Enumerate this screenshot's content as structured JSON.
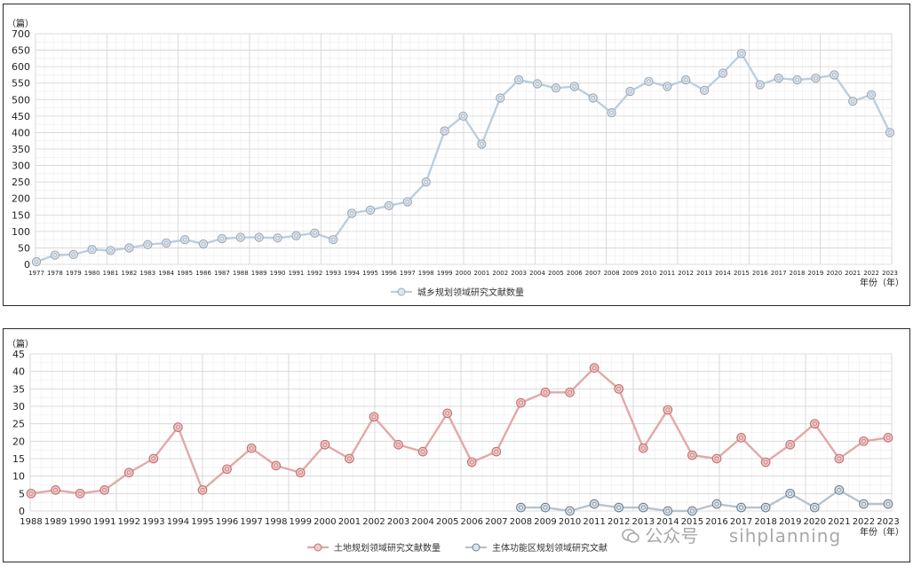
{
  "watermark": {
    "account": "公众号",
    "handle": "sihplanning",
    "icon": "wechat-icon"
  },
  "chart_data": [
    {
      "type": "line",
      "title": "",
      "ylabel": "（篇）",
      "xlabel": "年份（年）",
      "ylim": [
        0,
        700
      ],
      "yticks": [
        0,
        50,
        100,
        150,
        200,
        250,
        300,
        350,
        400,
        450,
        500,
        550,
        600,
        650,
        700
      ],
      "grid": true,
      "legend_position": "bottom-center",
      "colors": {
        "line": "#b9cfe0",
        "marker_fill": "#dfe6ee",
        "marker_stroke": "#9aa8b8"
      },
      "x": [
        "1977",
        "1978",
        "1979",
        "1980",
        "1981",
        "1982",
        "1983",
        "1984",
        "1985",
        "1986",
        "1987",
        "1988",
        "1989",
        "1990",
        "1991",
        "1992",
        "1993",
        "1994",
        "1995",
        "1996",
        "1997",
        "1998",
        "1999",
        "2000",
        "2001",
        "2002",
        "2003",
        "2004",
        "2005",
        "2006",
        "2007",
        "2008",
        "2009",
        "2010",
        "2011",
        "2012",
        "2013",
        "2014",
        "2015",
        "2016",
        "2017",
        "2018",
        "2019",
        "2020",
        "2021",
        "2022",
        "2023"
      ],
      "series": [
        {
          "name": "城乡规划领域研究文献数量",
          "values": [
            8,
            28,
            30,
            45,
            42,
            50,
            60,
            65,
            75,
            62,
            78,
            82,
            82,
            80,
            87,
            95,
            75,
            155,
            165,
            178,
            190,
            250,
            405,
            450,
            365,
            505,
            560,
            548,
            535,
            540,
            505,
            460,
            525,
            555,
            540,
            560,
            528,
            580,
            640,
            545,
            565,
            560,
            565,
            575,
            495,
            515,
            400
          ]
        }
      ]
    },
    {
      "type": "line",
      "title": "",
      "ylabel": "（篇）",
      "xlabel": "年份（年）",
      "ylim": [
        0,
        45
      ],
      "yticks": [
        0,
        5,
        10,
        15,
        20,
        25,
        30,
        35,
        40,
        45
      ],
      "grid": true,
      "legend_position": "bottom-center",
      "colors": {
        "land": "#e3a8a8",
        "land_marker": "#f1c9c9",
        "land_marker_stroke": "#c07070",
        "zone": "#b7c3cf",
        "zone_marker": "#dde4ea",
        "zone_marker_stroke": "#6e7f90"
      },
      "x": [
        "1988",
        "1989",
        "1990",
        "1991",
        "1992",
        "1993",
        "1994",
        "1995",
        "1996",
        "1997",
        "1998",
        "1999",
        "2000",
        "2001",
        "2002",
        "2003",
        "2004",
        "2005",
        "2006",
        "2007",
        "2008",
        "2009",
        "2010",
        "2011",
        "2012",
        "2013",
        "2014",
        "2015",
        "2016",
        "2017",
        "2018",
        "2019",
        "2020",
        "2021",
        "2022",
        "2023"
      ],
      "series": [
        {
          "name": "土地规划领域研究文献数量",
          "values": [
            5,
            6,
            5,
            6,
            11,
            15,
            24,
            6,
            12,
            18,
            13,
            11,
            19,
            15,
            27,
            19,
            17,
            28,
            14,
            17,
            31,
            34,
            34,
            41,
            35,
            18,
            29,
            16,
            15,
            21,
            14,
            19,
            25,
            15,
            20,
            21
          ]
        },
        {
          "name": "主体功能区规划领域研究文献",
          "values": [
            null,
            null,
            null,
            null,
            null,
            null,
            null,
            null,
            null,
            null,
            null,
            null,
            null,
            null,
            null,
            null,
            null,
            null,
            null,
            null,
            1,
            1,
            0,
            2,
            1,
            1,
            0,
            0,
            2,
            1,
            1,
            5,
            1,
            6,
            2,
            2
          ]
        }
      ]
    }
  ]
}
